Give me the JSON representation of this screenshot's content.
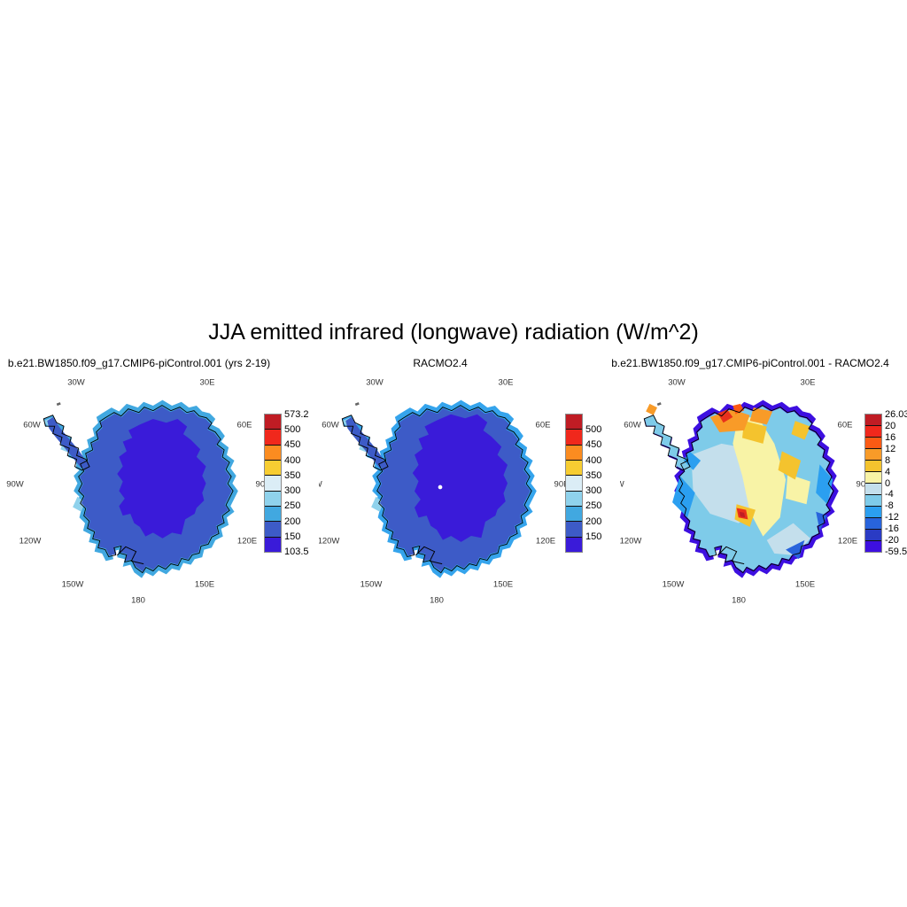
{
  "figure_title": "JJA emitted infrared (longwave) radiation (W/m^2)",
  "panels": [
    {
      "id": "model",
      "title": "b.e21.BW1850.f09_g17.CMIP6-piControl.001 (yrs 2-19)",
      "lon_labels": [
        "30W",
        "30E",
        "60W",
        "60E",
        "90W",
        "90E",
        "120W",
        "120E",
        "150W",
        "150E",
        "180"
      ],
      "colorbar": {
        "colors_top_to_bottom": [
          "#C01C24",
          "#F0281C",
          "#FB8C20",
          "#F7CD32",
          "#DBEDF6",
          "#8FD2EC",
          "#41A8E0",
          "#3D5BC7",
          "#3A1BD9"
        ],
        "boundary_labels": [
          "573.2",
          "500",
          "450",
          "400",
          "350",
          "300",
          "250",
          "200",
          "150",
          "103.5"
        ]
      },
      "map_colors": {
        "fringe": "#41A8E0",
        "ring": "#3D5BC7",
        "interior": "#3A1BD9",
        "coast_light": "#8FD2EC",
        "island": "#666666"
      }
    },
    {
      "id": "racmo",
      "title": "RACMO2.4",
      "lon_labels": [
        "30W",
        "30E",
        "60W",
        "60E",
        "90W",
        "90E",
        "120W",
        "120E",
        "150W",
        "150E",
        "180"
      ],
      "colorbar": {
        "colors_top_to_bottom": [
          "#C01C24",
          "#F0281C",
          "#FB8C20",
          "#F7CD32",
          "#DBEDF6",
          "#8FD2EC",
          "#41A8E0",
          "#3D5BC7",
          "#3A1BD9"
        ],
        "boundary_labels": [
          "",
          "500",
          "450",
          "400",
          "350",
          "300",
          "250",
          "200",
          "150",
          ""
        ]
      },
      "map_colors": {
        "fringe": "#35A4EC",
        "ring": "#3D5BC7",
        "interior": "#3A1BD9",
        "coast_light": "#8FD2EC",
        "pole_dot": "#FFFFFF",
        "island": "#666666"
      }
    },
    {
      "id": "difference",
      "title": "b.e21.BW1850.f09_g17.CMIP6-piControl.001 - RACMO2.4",
      "lon_labels": [
        "30W",
        "30E",
        "60W",
        "60E",
        "90W",
        "90E",
        "120W",
        "120E",
        "150W",
        "150E",
        "180"
      ],
      "colorbar": {
        "colors_top_to_bottom": [
          "#C01C24",
          "#F0281C",
          "#FB5A14",
          "#F89B28",
          "#F4C32E",
          "#F8F3A6",
          "#C4DFEC",
          "#7ECBE9",
          "#2B9FF0",
          "#2864DC",
          "#2A3BC4",
          "#3D0FE0"
        ],
        "boundary_labels": [
          "26.03",
          "20",
          "16",
          "12",
          "8",
          "4",
          "0",
          "-4",
          "-8",
          "-12",
          "-16",
          "-20",
          "-59.54"
        ]
      },
      "map_colors": {
        "edge": "#3D0FE0",
        "base": "#7ECBE9",
        "pale": "#C4DFEC",
        "pale_yellow": "#F8F3A6",
        "gold": "#F4C32E",
        "orange": "#F89B28",
        "orange_red": "#FB5A14",
        "red": "#E8301C",
        "dark_red": "#C01C24",
        "sky": "#2B9FF0",
        "medium_blue": "#2864DC",
        "island": "#666666"
      }
    }
  ],
  "chart_data": [
    {
      "type": "heatmap",
      "panel": 1,
      "title": "b.e21.BW1850.f09_g17.CMIP6-piControl.001 (yrs 2-19)",
      "variable": "JJA emitted infrared (longwave) radiation",
      "units": "W/m^2",
      "projection": "south polar stereographic (Antarctica)",
      "data_min": 103.5,
      "data_max": 573.2,
      "contour_levels": [
        150,
        200,
        250,
        300,
        350,
        400,
        450,
        500
      ],
      "palette_low_to_high": [
        "#3A1BD9",
        "#3D5BC7",
        "#41A8E0",
        "#8FD2EC",
        "#DBEDF6",
        "#F7CD32",
        "#FB8C20",
        "#F0281C",
        "#C01C24"
      ],
      "observed_regions": [
        {
          "region": "East Antarctic plateau interior",
          "value_range": [
            103.5,
            150
          ]
        },
        {
          "region": "plateau flanks and West Antarctica",
          "value_range": [
            150,
            200
          ]
        },
        {
          "region": "coastal fringe of ice sheet",
          "value_range": [
            200,
            250
          ]
        },
        {
          "region": "Antarctic Peninsula coast",
          "value_range": [
            250,
            300
          ]
        }
      ]
    },
    {
      "type": "heatmap",
      "panel": 2,
      "title": "RACMO2.4",
      "variable": "JJA emitted infrared (longwave) radiation",
      "units": "W/m^2",
      "projection": "south polar stereographic (Antarctica)",
      "contour_levels": [
        150,
        200,
        250,
        300,
        350,
        400,
        450,
        500
      ],
      "palette_low_to_high": [
        "#3A1BD9",
        "#3D5BC7",
        "#41A8E0",
        "#8FD2EC",
        "#DBEDF6",
        "#F7CD32",
        "#FB8C20",
        "#F0281C",
        "#C01C24"
      ],
      "observed_regions": [
        {
          "region": "East Antarctic plateau interior (larger extent than model)",
          "value_range": [
            103.5,
            150
          ]
        },
        {
          "region": "West Antarctica",
          "value_range": [
            150,
            200
          ]
        },
        {
          "region": "coastal fringe of ice sheet",
          "value_range": [
            200,
            250
          ]
        },
        {
          "region": "South Pole grid point",
          "value_range": [
            "missing data (white)",
            ""
          ]
        }
      ]
    },
    {
      "type": "heatmap",
      "panel": 3,
      "title": "b.e21.BW1850.f09_g17.CMIP6-piControl.001 - RACMO2.4",
      "variable": "JJA emitted infrared (longwave) radiation difference",
      "units": "W/m^2",
      "projection": "south polar stereographic (Antarctica)",
      "data_min": -59.54,
      "data_max": 26.03,
      "contour_levels": [
        -20,
        -16,
        -12,
        -8,
        -4,
        0,
        4,
        8,
        12,
        16,
        20
      ],
      "palette_low_to_high": [
        "#3D0FE0",
        "#2A3BC4",
        "#2864DC",
        "#2B9FF0",
        "#7ECBE9",
        "#C4DFEC",
        "#F8F3A6",
        "#F4C32E",
        "#F89B28",
        "#FB5A14",
        "#F0281C",
        "#C01C24"
      ],
      "observed_regions": [
        {
          "region": "coastal margins all around ice sheet",
          "value_range": [
            -59.54,
            -20
          ]
        },
        {
          "region": "Dronning Maud Land sector (top, 0-30E)",
          "value_range": [
            12,
            26.03
          ]
        },
        {
          "region": "central plateau band",
          "value_range": [
            0,
            12
          ]
        },
        {
          "region": "spot near Transantarctic Mountains",
          "value_range": [
            12,
            26.03
          ]
        },
        {
          "region": "East and West Antarctic interiors",
          "value_range": [
            -12,
            -4
          ]
        }
      ]
    }
  ]
}
